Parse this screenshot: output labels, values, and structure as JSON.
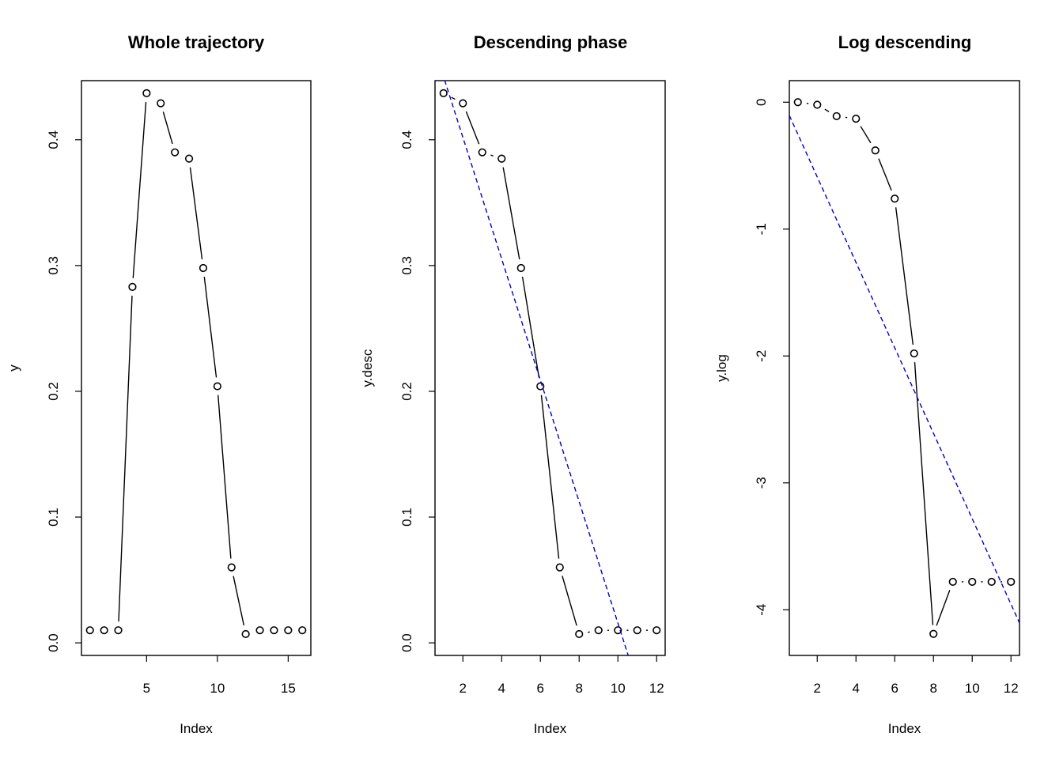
{
  "chart_data": [
    {
      "type": "line",
      "title": "Whole trajectory",
      "xlabel": "Index",
      "ylabel": "y",
      "xlim": [
        0.4,
        16.6
      ],
      "ylim": [
        -0.01,
        0.447
      ],
      "xticks": [
        5,
        10,
        15
      ],
      "yticks": [
        0.0,
        0.1,
        0.2,
        0.3,
        0.4
      ],
      "ytick_labels": [
        "0.0",
        "0.1",
        "0.2",
        "0.3",
        "0.4"
      ],
      "grid": false,
      "series": [
        {
          "marker": "open-circle",
          "line_style": "b",
          "x": [
            1,
            2,
            3,
            4,
            5,
            6,
            7,
            8,
            9,
            10,
            11,
            12,
            13,
            14,
            15,
            16
          ],
          "y": [
            0.01,
            0.01,
            0.01,
            0.283,
            0.437,
            0.429,
            0.39,
            0.385,
            0.298,
            0.204,
            0.06,
            0.007,
            0.01,
            0.01,
            0.01,
            0.01
          ]
        }
      ]
    },
    {
      "type": "line",
      "title": "Descending phase",
      "xlabel": "Index",
      "ylabel": "y.desc",
      "xlim": [
        0.56,
        12.44
      ],
      "ylim": [
        -0.01,
        0.447
      ],
      "xticks": [
        2,
        4,
        6,
        8,
        10,
        12
      ],
      "yticks": [
        0.0,
        0.1,
        0.2,
        0.3,
        0.4
      ],
      "ytick_labels": [
        "0.0",
        "0.1",
        "0.2",
        "0.3",
        "0.4"
      ],
      "grid": false,
      "series": [
        {
          "marker": "open-circle",
          "line_style": "b",
          "x": [
            1,
            2,
            3,
            4,
            5,
            6,
            7,
            8,
            9,
            10,
            11,
            12
          ],
          "y": [
            0.437,
            0.429,
            0.39,
            0.385,
            0.298,
            0.204,
            0.06,
            0.007,
            0.01,
            0.01,
            0.01,
            0.01
          ]
        }
      ],
      "fit_line": {
        "intercept": 0.4984,
        "slope": -0.04827,
        "color": "#0000cc",
        "style": "dashed"
      }
    },
    {
      "type": "line",
      "title": "Log descending",
      "xlabel": "Index",
      "ylabel": "y.log",
      "xlim": [
        0.56,
        12.44
      ],
      "ylim": [
        -4.36,
        0.17
      ],
      "xticks": [
        2,
        4,
        6,
        8,
        10,
        12
      ],
      "yticks": [
        0,
        -1,
        -2,
        -3,
        -4
      ],
      "ytick_labels": [
        "0",
        "-1",
        "-2",
        "-3",
        "-4"
      ],
      "grid": false,
      "series": [
        {
          "marker": "open-circle",
          "line_style": "b",
          "x": [
            1,
            2,
            3,
            4,
            5,
            6,
            7,
            8,
            9,
            10,
            11,
            12
          ],
          "y": [
            0.0,
            -0.02,
            -0.11,
            -0.13,
            -0.38,
            -0.76,
            -1.98,
            -4.19,
            -3.78,
            -3.78,
            -3.78,
            -3.78
          ]
        }
      ],
      "fit_line": {
        "intercept": 0.0843,
        "slope": -0.3367,
        "color": "#0000cc",
        "style": "dashed"
      }
    }
  ]
}
